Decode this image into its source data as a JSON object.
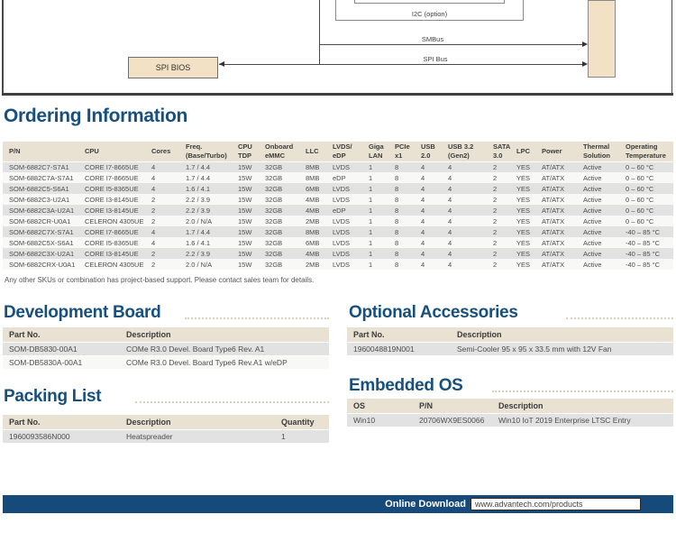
{
  "diagram": {
    "spi_bios": "SPI BIOS",
    "i2c": "I2C (option)",
    "smbus": "SMBus",
    "spi_bus": "SPI Bus"
  },
  "ordering": {
    "title": "Ordering Information",
    "columns": [
      "P/N",
      "CPU",
      "Cores",
      "Freq.\n(Base/Turbo)",
      "CPU\nTDP",
      "Onboard\neMMC",
      "LLC",
      "LVDS/\neDP",
      "Giga\nLAN",
      "PCIe\nx1",
      "USB\n2.0",
      "USB 3.2\n(Gen2)",
      "SATA\n3.0",
      "LPC",
      "Power",
      "Thermal\nSolution",
      "Operating\nTemperature"
    ],
    "rows": [
      [
        "SOM-6882C7-S7A1",
        "CORE I7-8665UE",
        "4",
        "1.7 / 4.4",
        "15W",
        "32GB",
        "8MB",
        "LVDS",
        "1",
        "8",
        "4",
        "4",
        "2",
        "YES",
        "AT/ATX",
        "Active",
        "0 – 60 °C"
      ],
      [
        "SOM-6882C7A-S7A1",
        "CORE I7-8665UE",
        "4",
        "1.7 / 4.4",
        "15W",
        "32GB",
        "8MB",
        "eDP",
        "1",
        "8",
        "4",
        "4",
        "2",
        "YES",
        "AT/ATX",
        "Active",
        "0 – 60 °C"
      ],
      [
        "SOM-6882C5-S6A1",
        "CORE I5-8365UE",
        "4",
        "1.6 / 4.1",
        "15W",
        "32GB",
        "6MB",
        "LVDS",
        "1",
        "8",
        "4",
        "4",
        "2",
        "YES",
        "AT/ATX",
        "Active",
        "0 – 60 °C"
      ],
      [
        "SOM-6882C3-U2A1",
        "CORE I3-8145UE",
        "2",
        "2.2 / 3.9",
        "15W",
        "32GB",
        "4MB",
        "LVDS",
        "1",
        "8",
        "4",
        "4",
        "2",
        "YES",
        "AT/ATX",
        "Active",
        "0 – 60 °C"
      ],
      [
        "SOM-6882C3A-U2A1",
        "CORE I3-8145UE",
        "2",
        "2.2 / 3.9",
        "15W",
        "32GB",
        "4MB",
        "eDP",
        "1",
        "8",
        "4",
        "4",
        "2",
        "YES",
        "AT/ATX",
        "Active",
        "0 – 60 °C"
      ],
      [
        "SOM-6882CR-U0A1",
        "CELERON 4305UE",
        "2",
        "2.0 / N/A",
        "15W",
        "32GB",
        "2MB",
        "LVDS",
        "1",
        "8",
        "4",
        "4",
        "2",
        "YES",
        "AT/ATX",
        "Active",
        "0 – 60 °C"
      ],
      [
        "SOM-6882C7X-S7A1",
        "CORE I7-8665UE",
        "4",
        "1.7 / 4.4",
        "15W",
        "32GB",
        "8MB",
        "LVDS",
        "1",
        "8",
        "4",
        "4",
        "2",
        "YES",
        "AT/ATX",
        "Active",
        "-40 – 85 °C"
      ],
      [
        "SOM-6882C5X-S6A1",
        "CORE I5-8365UE",
        "4",
        "1.6 / 4.1",
        "15W",
        "32GB",
        "6MB",
        "LVDS",
        "1",
        "8",
        "4",
        "4",
        "2",
        "YES",
        "AT/ATX",
        "Active",
        "-40 – 85 °C"
      ],
      [
        "SOM-6882C3X-U2A1",
        "CORE I3-8145UE",
        "2",
        "2.2 / 3.9",
        "15W",
        "32GB",
        "4MB",
        "LVDS",
        "1",
        "8",
        "4",
        "4",
        "2",
        "YES",
        "AT/ATX",
        "Active",
        "-40 – 85 °C"
      ],
      [
        "SOM-6882CRX-U0A1",
        "CELERON 4305UE",
        "2",
        "2.0 / N/A",
        "15W",
        "32GB",
        "2MB",
        "LVDS",
        "1",
        "8",
        "4",
        "4",
        "2",
        "YES",
        "AT/ATX",
        "Active",
        "-40 – 85 °C"
      ]
    ],
    "note": "Any other SKUs or combination has project-based support. Please contact sales team for details."
  },
  "dev_board": {
    "title": "Development Board",
    "columns": [
      "Part No.",
      "Description"
    ],
    "rows": [
      [
        "SOM-DB5830-00A1",
        "COMe R3.0 Devel. Board Type6 Rev. A1"
      ],
      [
        "SOM-DB5830A-00A1",
        "COMe R3.0 Devel. Board Type6 Rev.A1 w/eDP"
      ]
    ]
  },
  "accessories": {
    "title": "Optional Accessories",
    "columns": [
      "Part No.",
      "Description"
    ],
    "rows": [
      [
        "1960048819N001",
        "Semi-Cooler 95 x 95 x 33.5 mm with 12V Fan"
      ]
    ]
  },
  "packing": {
    "title": "Packing List",
    "columns": [
      "Part No.",
      "Description",
      "Quantity"
    ],
    "rows": [
      [
        "1960093586N000",
        "Heatspreader",
        "1"
      ]
    ]
  },
  "embedded_os": {
    "title": "Embedded OS",
    "columns": [
      "OS",
      "P/N",
      "Description"
    ],
    "rows": [
      [
        "Win10",
        "20706WX9ES0066",
        "Win10 IoT 2019 Enterprise LTSC Entry"
      ]
    ]
  },
  "footer": {
    "download_label": "Online Download",
    "url": "www.advantech.com/products"
  },
  "colors": {
    "accent": "#17507E",
    "footer_bar": "#164a7a",
    "table_header_bg": "#e9e2d3",
    "row_gray": "#e2e2e2",
    "diagram_box_fill": "#f2e1c4"
  }
}
